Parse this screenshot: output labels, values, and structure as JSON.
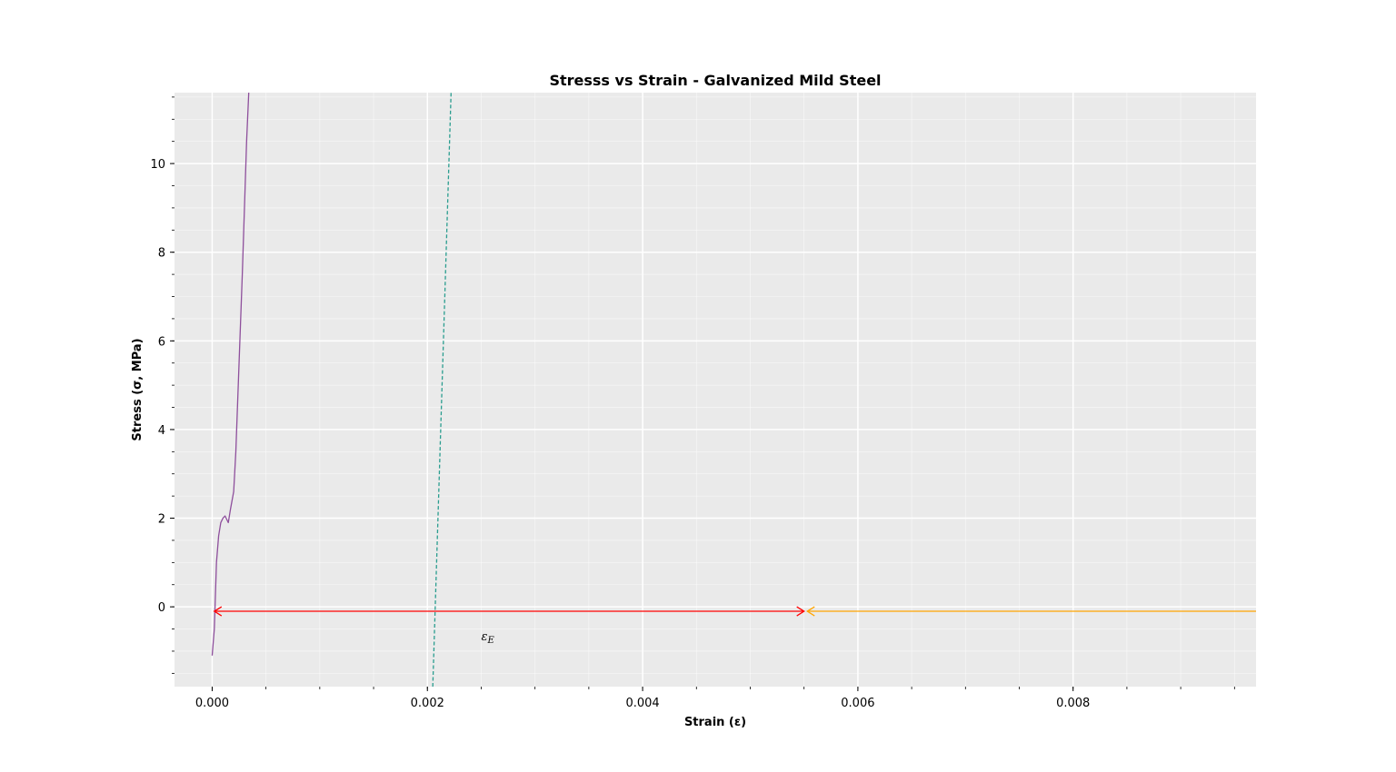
{
  "chart_data": {
    "type": "line",
    "title": "Stresss vs Strain - Galvanized Mild Steel",
    "xlabel": "Strain (ε)",
    "ylabel": "Stress (σ, MPa)",
    "xlim": [
      -0.00035,
      0.0097
    ],
    "ylim": [
      -1.8,
      11.6
    ],
    "x_ticks": [
      0.0,
      0.002,
      0.004,
      0.006,
      0.008
    ],
    "x_tick_labels": [
      "0.000",
      "0.002",
      "0.004",
      "0.006",
      "0.008"
    ],
    "y_ticks": [
      0,
      2,
      4,
      6,
      8,
      10
    ],
    "y_tick_labels": [
      "0",
      "2",
      "4",
      "6",
      "8",
      "10"
    ],
    "grid": true,
    "background": "#eaeaea",
    "series": [
      {
        "style": "solid",
        "color": "#8e4f9c",
        "x": [
          0.0,
          2e-05,
          4e-05,
          6e-05,
          8e-05,
          0.0001,
          0.00012,
          0.00014,
          0.00015,
          0.00017,
          0.0002,
          0.00022,
          0.00025,
          0.00028,
          0.0003,
          0.00032,
          0.00034
        ],
        "y": [
          -1.1,
          -0.5,
          1.0,
          1.6,
          1.9,
          2.0,
          2.05,
          1.95,
          1.9,
          2.2,
          2.6,
          3.5,
          5.5,
          7.5,
          9.0,
          10.5,
          11.6
        ]
      },
      {
        "style": "dashed",
        "color": "#2a9d8f",
        "x": [
          0.00205,
          0.00222
        ],
        "y": [
          -1.8,
          11.6
        ]
      }
    ],
    "annotations": [
      {
        "type": "double-arrow",
        "color": "#ff0000",
        "x_start": 2e-05,
        "x_end": 0.0055,
        "y": -0.1
      },
      {
        "type": "arrow",
        "color": "#ffa500",
        "x_start": 0.0097,
        "x_end": 0.00553,
        "y": -0.1
      },
      {
        "type": "text",
        "text": "ε",
        "subscript": "E",
        "x": 0.0025,
        "y": -0.65
      }
    ]
  }
}
